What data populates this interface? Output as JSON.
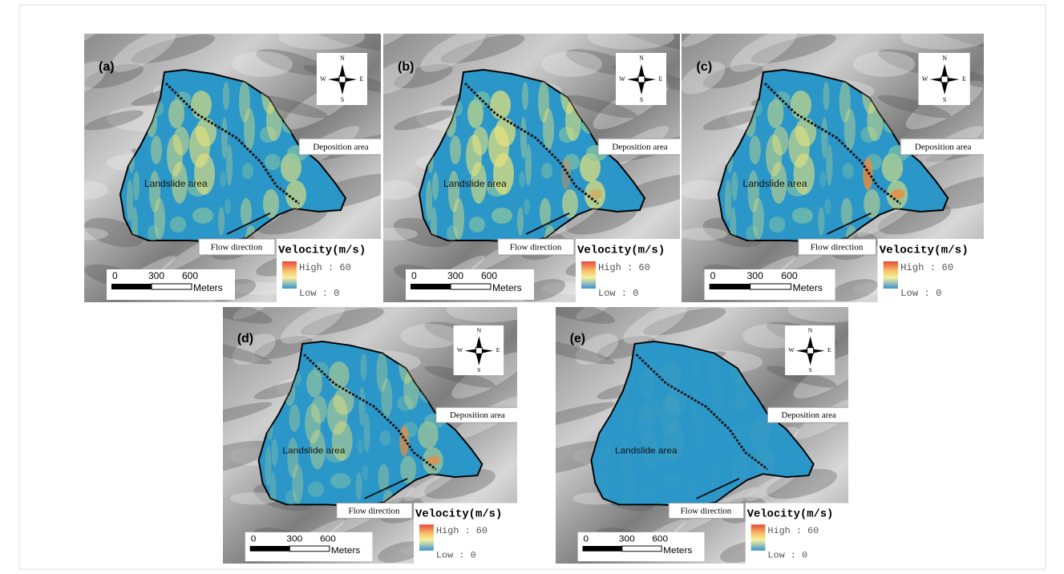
{
  "panels": [
    {
      "label": "(a)",
      "compass": {
        "n": "N",
        "s": "S",
        "w": "W",
        "e": "E"
      },
      "deposition": "Deposition area",
      "landslide": "Landslide area",
      "flow": "Flow direction",
      "legend_title": "Velocity(m/s)",
      "high": "High : 60",
      "low": "Low : 0",
      "scale": {
        "ticks": [
          "0",
          "300",
          "600"
        ],
        "unit": "Meters"
      }
    },
    {
      "label": "(b)",
      "compass": {
        "n": "N",
        "s": "S",
        "w": "W",
        "e": "E"
      },
      "deposition": "Deposition area",
      "landslide": "Landslide area",
      "flow": "Flow direction",
      "legend_title": "Velocity(m/s)",
      "high": "High : 60",
      "low": "Low : 0",
      "scale": {
        "ticks": [
          "0",
          "300",
          "600"
        ],
        "unit": "Meters"
      }
    },
    {
      "label": "(c)",
      "compass": {
        "n": "N",
        "s": "S",
        "w": "W",
        "e": "E"
      },
      "deposition": "Deposition area",
      "landslide": "Landslide area",
      "flow": "Flow direction",
      "legend_title": "Velocity(m/s)",
      "high": "High : 60",
      "low": "Low : 0",
      "scale": {
        "ticks": [
          "0",
          "300",
          "600"
        ],
        "unit": "Meters"
      }
    },
    {
      "label": "(d)",
      "compass": {
        "n": "N",
        "s": "S",
        "w": "W",
        "e": "E"
      },
      "deposition": "Deposition area",
      "landslide": "Landslide area",
      "flow": "Flow direction",
      "legend_title": "Velocity(m/s)",
      "high": "High : 60",
      "low": "Low : 0",
      "scale": {
        "ticks": [
          "0",
          "300",
          "600"
        ],
        "unit": "Meters"
      }
    },
    {
      "label": "(e)",
      "compass": {
        "n": "N",
        "s": "S",
        "w": "W",
        "e": "E"
      },
      "deposition": "Deposition area",
      "landslide": "Landslide area",
      "flow": "Flow direction",
      "legend_title": "Velocity(m/s)",
      "high": "High : 60",
      "low": "Low : 0",
      "scale": {
        "ticks": [
          "0",
          "300",
          "600"
        ],
        "unit": "Meters"
      }
    }
  ]
}
